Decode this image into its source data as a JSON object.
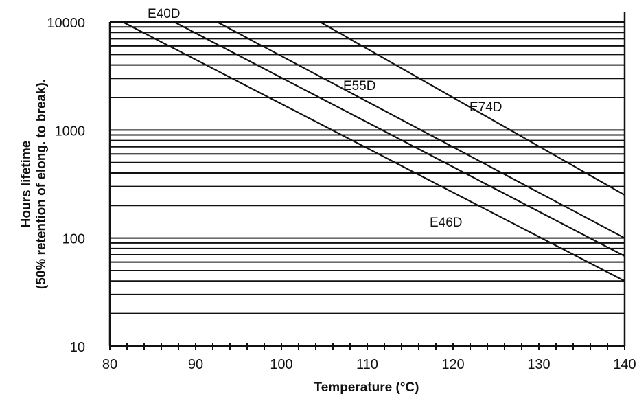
{
  "chart_data": {
    "type": "line",
    "title": "",
    "xlabel": "Temperature (°C)",
    "ylabel": "Hours lifetime",
    "ylabel2": "(50% retention of elong. to break).",
    "xlim": [
      80,
      140
    ],
    "ylim": [
      10,
      10000
    ],
    "yscale": "log",
    "grid": "horizontal log gridlines",
    "xticks": [
      80,
      90,
      100,
      110,
      120,
      130,
      140
    ],
    "xtick_labels": [
      "80",
      "90",
      "100",
      "110",
      "120",
      "130",
      "140"
    ],
    "yticks": [
      10,
      100,
      1000,
      10000
    ],
    "ytick_labels": [
      "10",
      "100",
      "1000",
      "10000"
    ],
    "series": [
      {
        "name": "E40D",
        "x": [
          81.5,
          140
        ],
        "y": [
          10000,
          40
        ]
      },
      {
        "name": "E46D",
        "x": [
          87.5,
          140
        ],
        "y": [
          10000,
          68
        ]
      },
      {
        "name": "E55D",
        "x": [
          92.5,
          140
        ],
        "y": [
          10000,
          100
        ]
      },
      {
        "name": "E74D",
        "x": [
          104.5,
          140
        ],
        "y": [
          10000,
          250
        ]
      }
    ],
    "colors": {
      "line": "#111111",
      "background": "#ffffff"
    }
  }
}
